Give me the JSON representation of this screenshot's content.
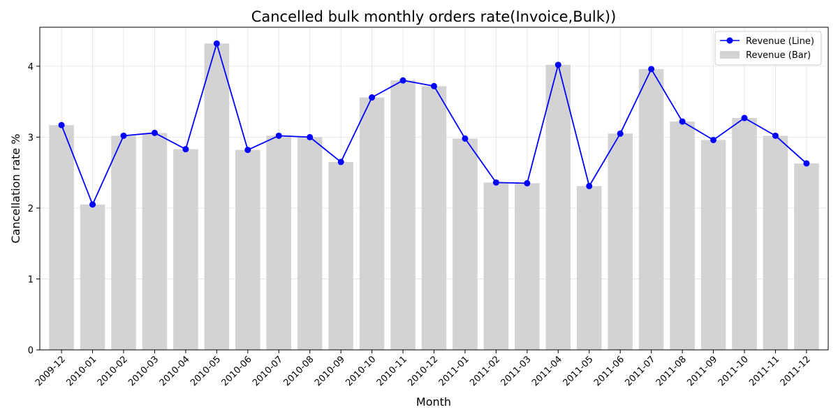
{
  "chart_data": {
    "type": "bar",
    "title": "Cancelled bulk monthly orders rate(Invoice,Bulk))",
    "xlabel": "Month",
    "ylabel": "Cancellation rate %",
    "ylim": [
      0,
      4.55
    ],
    "yticks": [
      0,
      1,
      2,
      3,
      4
    ],
    "grid": true,
    "legend_position": "top-right",
    "categories": [
      "2009-12",
      "2010-01",
      "2010-02",
      "2010-03",
      "2010-04",
      "2010-05",
      "2010-06",
      "2010-07",
      "2010-08",
      "2010-09",
      "2010-10",
      "2010-11",
      "2010-12",
      "2011-01",
      "2011-02",
      "2011-03",
      "2011-04",
      "2011-05",
      "2011-06",
      "2011-07",
      "2011-08",
      "2011-09",
      "2011-10",
      "2011-11",
      "2011-12"
    ],
    "series": [
      {
        "name": "Revenue (Line)",
        "kind": "line",
        "color": "#0000ff",
        "values": [
          3.17,
          2.05,
          3.02,
          3.06,
          2.83,
          4.32,
          2.82,
          3.02,
          3.0,
          2.65,
          3.56,
          3.8,
          3.72,
          2.98,
          2.36,
          2.35,
          4.02,
          2.31,
          3.05,
          3.96,
          3.22,
          2.96,
          3.27,
          3.02,
          2.63
        ]
      },
      {
        "name": "Revenue (Bar)",
        "kind": "bar",
        "color": "#d3d3d3",
        "values": [
          3.17,
          2.05,
          3.02,
          3.06,
          2.83,
          4.32,
          2.82,
          3.02,
          3.0,
          2.65,
          3.56,
          3.8,
          3.72,
          2.98,
          2.36,
          2.35,
          4.02,
          2.31,
          3.05,
          3.96,
          3.22,
          2.96,
          3.27,
          3.02,
          2.63
        ]
      }
    ]
  }
}
